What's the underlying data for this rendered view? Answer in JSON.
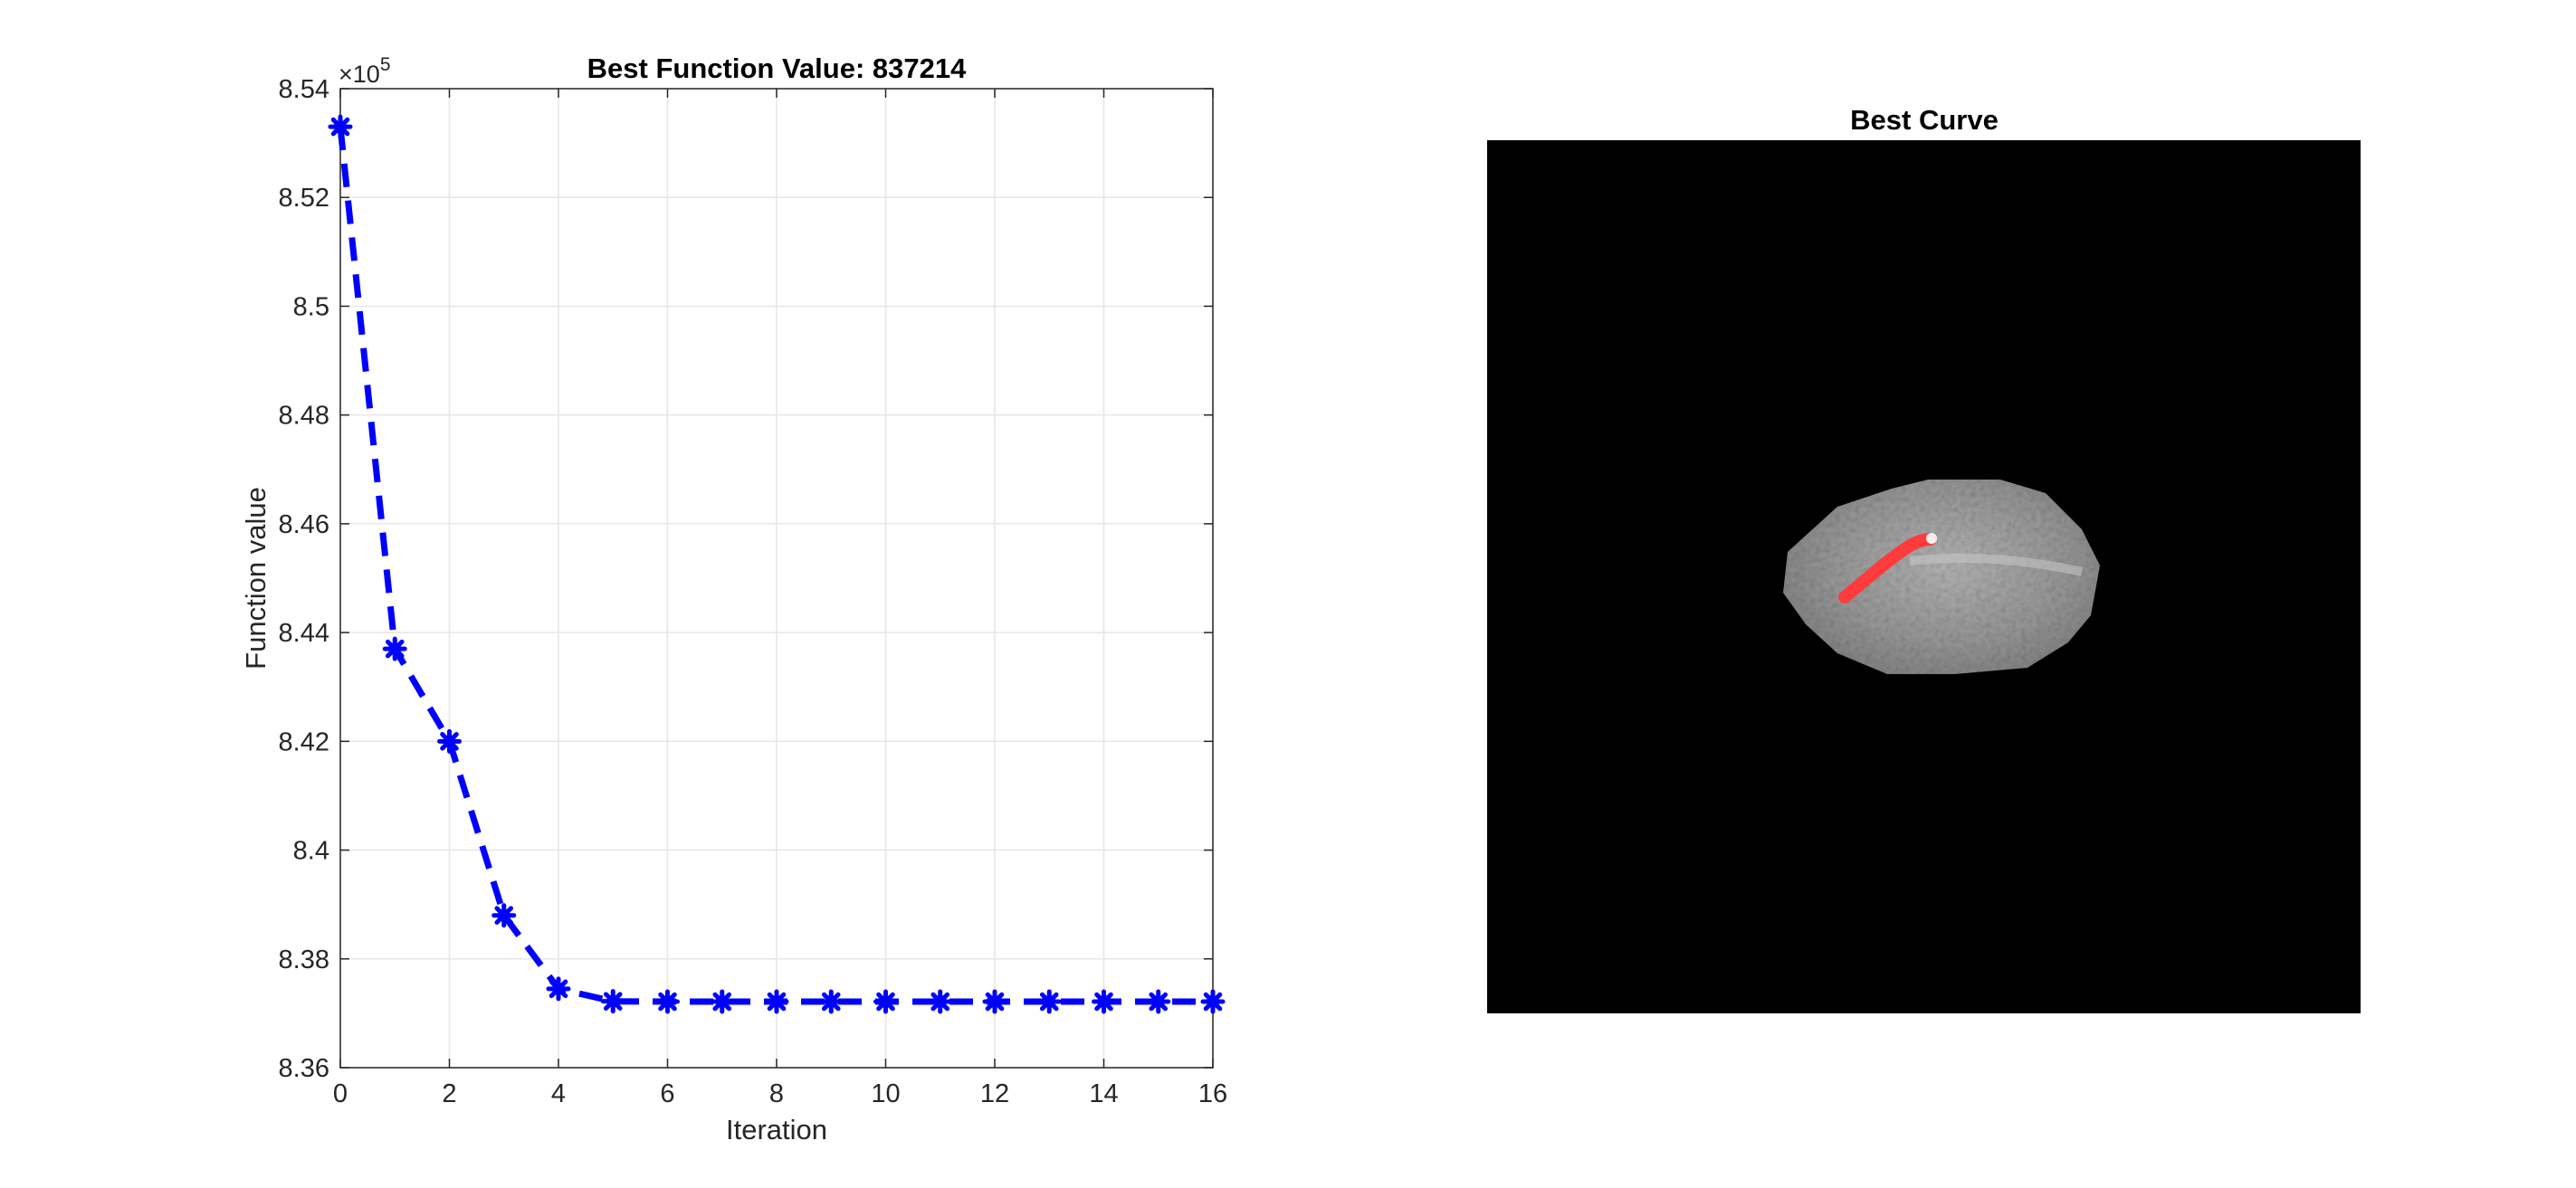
{
  "chart_data": [
    {
      "type": "line",
      "title": "Best Function Value: 837214",
      "xlabel": "Iteration",
      "ylabel": "Function value",
      "xlim": [
        0,
        16
      ],
      "ylim": [
        836000,
        854000
      ],
      "xticks": [
        0,
        2,
        4,
        6,
        8,
        10,
        12,
        14,
        16
      ],
      "xtick_labels": [
        "0",
        "2",
        "4",
        "6",
        "8",
        "10",
        "12",
        "14",
        "16"
      ],
      "yticks": [
        836000,
        838000,
        840000,
        842000,
        844000,
        846000,
        848000,
        850000,
        852000,
        854000
      ],
      "ytick_labels": [
        "8.36",
        "8.38",
        "8.4",
        "8.42",
        "8.44",
        "8.46",
        "8.48",
        "8.5",
        "8.52",
        "8.54"
      ],
      "y_exponent_label": "×10",
      "y_exponent_power": "5",
      "grid": true,
      "line_style": "dashed",
      "marker": "asterisk",
      "color": "#0000ff",
      "x": [
        0,
        1,
        2,
        3,
        4,
        5,
        6,
        7,
        8,
        9,
        10,
        11,
        12,
        13,
        14,
        15,
        16
      ],
      "y": [
        853300,
        843700,
        842000,
        838800,
        837450,
        837220,
        837214,
        837214,
        837214,
        837214,
        837214,
        837214,
        837214,
        837214,
        837214,
        837214,
        837214
      ]
    },
    {
      "type": "image",
      "title": "Best Curve",
      "background_color": "#000000",
      "object_color": "#9a9a9a",
      "curve_color": "#ff3b3b",
      "curve_highlight_color": "#ffffff"
    }
  ]
}
